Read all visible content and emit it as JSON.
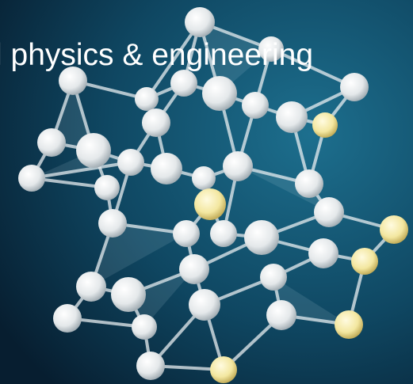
{
  "header": {
    "title": "l physics & engineering"
  }
}
